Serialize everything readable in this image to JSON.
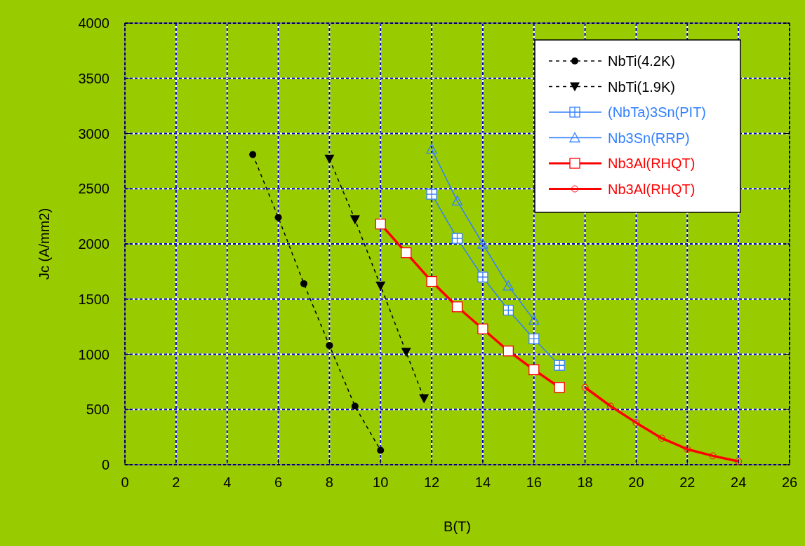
{
  "chart_data": {
    "type": "line",
    "xlabel": "B(T)",
    "ylabel": "Jc (A/mm2)",
    "xlim": [
      0,
      26
    ],
    "xticks": [
      0,
      2,
      4,
      6,
      8,
      10,
      12,
      14,
      16,
      18,
      20,
      22,
      24,
      26
    ],
    "ylim": [
      0,
      4000
    ],
    "yticks": [
      0,
      500,
      1000,
      1500,
      2000,
      2500,
      3000,
      3500,
      4000
    ],
    "grid": true,
    "legend": "top right",
    "series": [
      {
        "name": "NbTi(4.2K)",
        "color": "#000000",
        "marker": "circle",
        "line_style": "dashed",
        "x": [
          5,
          6,
          7,
          8,
          9,
          10
        ],
        "values": [
          2810,
          2240,
          1640,
          1080,
          530,
          130
        ]
      },
      {
        "name": "NbTi(1.9K)",
        "color": "#000000",
        "marker": "triangle-down",
        "line_style": "dashed",
        "x": [
          8,
          9,
          10,
          11,
          11.7
        ],
        "values": [
          2770,
          2220,
          1620,
          1020,
          600
        ]
      },
      {
        "name": "(NbTa)3Sn(PIT)",
        "color": "#3380ff",
        "marker": "square-cross",
        "line_style": "solid",
        "x": [
          12,
          13,
          14,
          15,
          16,
          17
        ],
        "values": [
          2450,
          2050,
          1700,
          1400,
          1140,
          900
        ]
      },
      {
        "name": "Nb3Sn(RRP)",
        "color": "#3380ff",
        "marker": "triangle",
        "line_style": "solid",
        "x": [
          12,
          13,
          14,
          15,
          16
        ],
        "values": [
          2860,
          2390,
          2000,
          1620,
          1310
        ]
      },
      {
        "name": "Nb3Al(RHQT)",
        "color": "#ff0000",
        "marker": "square",
        "line_style": "solid",
        "x": [
          10,
          11,
          12,
          13,
          14,
          15,
          16,
          17
        ],
        "values": [
          2180,
          1920,
          1660,
          1430,
          1230,
          1030,
          860,
          700
        ]
      },
      {
        "name": "Nb3Al(RHQT)",
        "color": "#ff0000",
        "marker": "circle",
        "line_style": "solid",
        "x": [
          18,
          19,
          20,
          21,
          22,
          23,
          24
        ],
        "values": [
          700,
          530,
          380,
          240,
          140,
          80,
          30
        ]
      }
    ]
  }
}
